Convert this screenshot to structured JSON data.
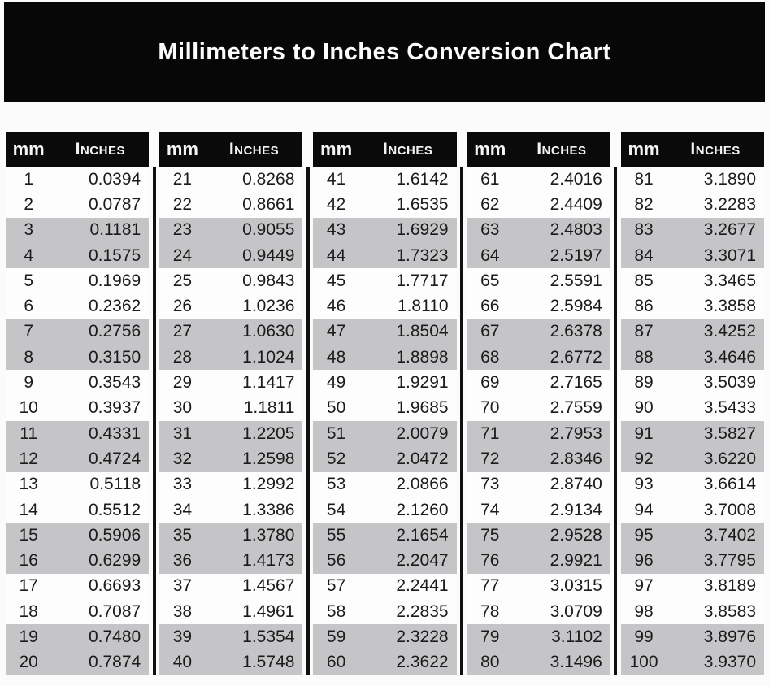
{
  "title": "Millimeters to Inches Conversion Chart",
  "colors": {
    "page_bg": "#fbfbfb",
    "banner_bg": "#070707",
    "banner_text": "#fdfdfd",
    "header_bg": "#0a0a0a",
    "header_text": "#f4f4f4",
    "row_gray": "#c5c5c7",
    "row_white": "#fdfdfd",
    "divider": "#101010",
    "text": "#1b1b1b"
  },
  "table": {
    "column_headers": {
      "mm": "mm",
      "inches": "Inches"
    },
    "groups_count": 5,
    "rows_per_group": 20,
    "shading_pattern": "alternating pairs (rows 3-4, 7-8, 11-12, 15-16, 19-20 of each group shaded gray)"
  },
  "chart_data": {
    "type": "table",
    "title": "Millimeters to Inches Conversion Chart",
    "columns": [
      "mm",
      "Inches"
    ],
    "mm": [
      1,
      2,
      3,
      4,
      5,
      6,
      7,
      8,
      9,
      10,
      11,
      12,
      13,
      14,
      15,
      16,
      17,
      18,
      19,
      20,
      21,
      22,
      23,
      24,
      25,
      26,
      27,
      28,
      29,
      30,
      31,
      32,
      33,
      34,
      35,
      36,
      37,
      38,
      39,
      40,
      41,
      42,
      43,
      44,
      45,
      46,
      47,
      48,
      49,
      50,
      51,
      52,
      53,
      54,
      55,
      56,
      57,
      58,
      59,
      60,
      61,
      62,
      63,
      64,
      65,
      66,
      67,
      68,
      69,
      70,
      71,
      72,
      73,
      74,
      75,
      76,
      77,
      78,
      79,
      80,
      81,
      82,
      83,
      84,
      85,
      86,
      87,
      88,
      89,
      90,
      91,
      92,
      93,
      94,
      95,
      96,
      97,
      98,
      99,
      100
    ],
    "inches": [
      "0.0394",
      "0.0787",
      "0.1181",
      "0.1575",
      "0.1969",
      "0.2362",
      "0.2756",
      "0.3150",
      "0.3543",
      "0.3937",
      "0.4331",
      "0.4724",
      "0.5118",
      "0.5512",
      "0.5906",
      "0.6299",
      "0.6693",
      "0.7087",
      "0.7480",
      "0.7874",
      "0.8268",
      "0.8661",
      "0.9055",
      "0.9449",
      "0.9843",
      "1.0236",
      "1.0630",
      "1.1024",
      "1.1417",
      "1.1811",
      "1.2205",
      "1.2598",
      "1.2992",
      "1.3386",
      "1.3780",
      "1.4173",
      "1.4567",
      "1.4961",
      "1.5354",
      "1.5748",
      "1.6142",
      "1.6535",
      "1.6929",
      "1.7323",
      "1.7717",
      "1.8110",
      "1.8504",
      "1.8898",
      "1.9291",
      "1.9685",
      "2.0079",
      "2.0472",
      "2.0866",
      "2.1260",
      "2.1654",
      "2.2047",
      "2.2441",
      "2.2835",
      "2.3228",
      "2.3622",
      "2.4016",
      "2.4409",
      "2.4803",
      "2.5197",
      "2.5591",
      "2.5984",
      "2.6378",
      "2.6772",
      "2.7165",
      "2.7559",
      "2.7953",
      "2.8346",
      "2.8740",
      "2.9134",
      "2.9528",
      "2.9921",
      "3.0315",
      "3.0709",
      "3.1102",
      "3.1496",
      "3.1890",
      "3.2283",
      "3.2677",
      "3.3071",
      "3.3465",
      "3.3858",
      "3.4252",
      "3.4646",
      "3.5039",
      "3.5433",
      "3.5827",
      "3.6220",
      "3.6614",
      "3.7008",
      "3.7402",
      "3.7795",
      "3.8189",
      "3.8583",
      "3.8976",
      "3.9370"
    ]
  }
}
